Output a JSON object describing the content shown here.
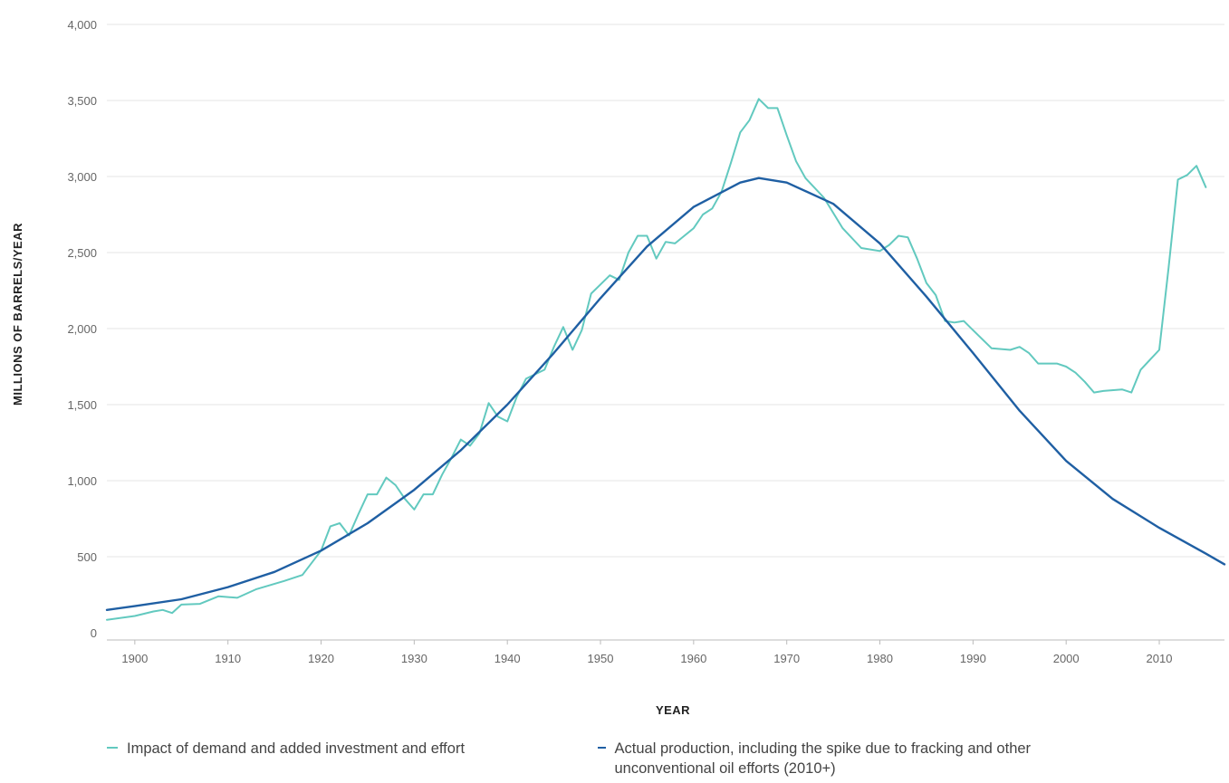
{
  "chart_data": {
    "type": "line",
    "xlabel": "YEAR",
    "ylabel": "MILLIONS OF BARRELS/YEAR",
    "xlim": [
      1897,
      2017
    ],
    "ylim": [
      0,
      4000
    ],
    "x_ticks": [
      "1900",
      "1910",
      "1920",
      "1930",
      "1940",
      "1950",
      "1960",
      "1970",
      "1980",
      "1990",
      "2000",
      "2010"
    ],
    "y_ticks": [
      "0",
      "500",
      "1,000",
      "1,500",
      "2,000",
      "2,500",
      "3,000",
      "3,500",
      "4,000"
    ],
    "y_tick_values": [
      0,
      500,
      1000,
      1500,
      2000,
      2500,
      3000,
      3500,
      4000
    ],
    "x_tick_values": [
      1900,
      1910,
      1920,
      1930,
      1940,
      1950,
      1960,
      1970,
      1980,
      1990,
      2000,
      2010
    ],
    "grid": "horizontal",
    "legend_placement": "bottom",
    "series": [
      {
        "name": "Impact of demand and added investment and effort",
        "color": "#62c9bf",
        "points": [
          [
            1897,
            85
          ],
          [
            1900,
            110
          ],
          [
            1902,
            140
          ],
          [
            1903,
            150
          ],
          [
            1904,
            130
          ],
          [
            1905,
            185
          ],
          [
            1907,
            190
          ],
          [
            1909,
            240
          ],
          [
            1911,
            230
          ],
          [
            1913,
            285
          ],
          [
            1916,
            340
          ],
          [
            1918,
            380
          ],
          [
            1920,
            540
          ],
          [
            1921,
            700
          ],
          [
            1922,
            720
          ],
          [
            1923,
            640
          ],
          [
            1924,
            780
          ],
          [
            1925,
            910
          ],
          [
            1926,
            910
          ],
          [
            1927,
            1020
          ],
          [
            1928,
            970
          ],
          [
            1929,
            880
          ],
          [
            1930,
            810
          ],
          [
            1931,
            910
          ],
          [
            1932,
            910
          ],
          [
            1933,
            1040
          ],
          [
            1934,
            1150
          ],
          [
            1935,
            1270
          ],
          [
            1936,
            1230
          ],
          [
            1937,
            1310
          ],
          [
            1938,
            1510
          ],
          [
            1939,
            1420
          ],
          [
            1940,
            1390
          ],
          [
            1941,
            1550
          ],
          [
            1942,
            1670
          ],
          [
            1943,
            1700
          ],
          [
            1944,
            1730
          ],
          [
            1945,
            1880
          ],
          [
            1946,
            2010
          ],
          [
            1947,
            1860
          ],
          [
            1948,
            1990
          ],
          [
            1949,
            2230
          ],
          [
            1950,
            2290
          ],
          [
            1951,
            2350
          ],
          [
            1952,
            2320
          ],
          [
            1953,
            2500
          ],
          [
            1954,
            2610
          ],
          [
            1955,
            2610
          ],
          [
            1956,
            2460
          ],
          [
            1957,
            2570
          ],
          [
            1958,
            2560
          ],
          [
            1959,
            2610
          ],
          [
            1960,
            2660
          ],
          [
            1961,
            2750
          ],
          [
            1962,
            2790
          ],
          [
            1963,
            2900
          ],
          [
            1964,
            3090
          ],
          [
            1965,
            3290
          ],
          [
            1966,
            3370
          ],
          [
            1967,
            3510
          ],
          [
            1968,
            3450
          ],
          [
            1969,
            3450
          ],
          [
            1970,
            3270
          ],
          [
            1971,
            3100
          ],
          [
            1972,
            2990
          ],
          [
            1974,
            2860
          ],
          [
            1976,
            2660
          ],
          [
            1978,
            2530
          ],
          [
            1980,
            2510
          ],
          [
            1981,
            2550
          ],
          [
            1982,
            2610
          ],
          [
            1983,
            2600
          ],
          [
            1984,
            2460
          ],
          [
            1985,
            2300
          ],
          [
            1986,
            2220
          ],
          [
            1987,
            2050
          ],
          [
            1988,
            2040
          ],
          [
            1989,
            2050
          ],
          [
            1990,
            1990
          ],
          [
            1992,
            1870
          ],
          [
            1994,
            1860
          ],
          [
            1995,
            1880
          ],
          [
            1996,
            1840
          ],
          [
            1997,
            1770
          ],
          [
            1999,
            1770
          ],
          [
            2000,
            1750
          ],
          [
            2001,
            1710
          ],
          [
            2002,
            1650
          ],
          [
            2003,
            1580
          ],
          [
            2004,
            1590
          ],
          [
            2006,
            1600
          ],
          [
            2007,
            1580
          ],
          [
            2008,
            1730
          ],
          [
            2010,
            1860
          ],
          [
            2011,
            2400
          ],
          [
            2012,
            2980
          ],
          [
            2013,
            3010
          ],
          [
            2014,
            3070
          ],
          [
            2015,
            2930
          ]
        ]
      },
      {
        "name": "Actual production, including the spike due to fracking and other unconventional oil efforts (2010+)",
        "color": "#1f5fa3",
        "points": [
          [
            1897,
            150
          ],
          [
            1900,
            175
          ],
          [
            1905,
            220
          ],
          [
            1910,
            300
          ],
          [
            1915,
            400
          ],
          [
            1920,
            540
          ],
          [
            1925,
            720
          ],
          [
            1930,
            940
          ],
          [
            1935,
            1200
          ],
          [
            1940,
            1500
          ],
          [
            1945,
            1840
          ],
          [
            1950,
            2200
          ],
          [
            1955,
            2540
          ],
          [
            1960,
            2800
          ],
          [
            1965,
            2960
          ],
          [
            1967,
            2990
          ],
          [
            1970,
            2960
          ],
          [
            1975,
            2820
          ],
          [
            1980,
            2560
          ],
          [
            1985,
            2210
          ],
          [
            1990,
            1840
          ],
          [
            1995,
            1460
          ],
          [
            2000,
            1130
          ],
          [
            2005,
            880
          ],
          [
            2010,
            690
          ],
          [
            2015,
            520
          ],
          [
            2017,
            450
          ]
        ]
      }
    ]
  }
}
